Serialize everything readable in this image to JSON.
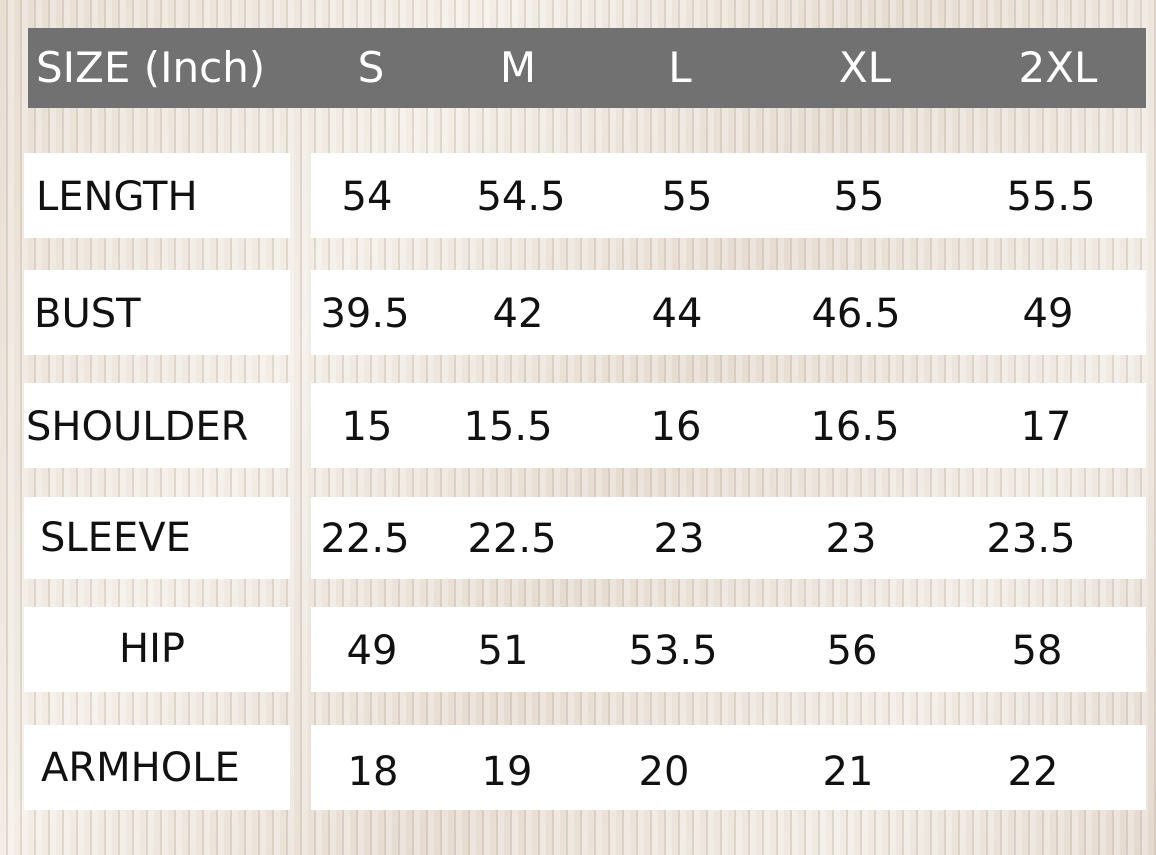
{
  "header": {
    "title": "SIZE (Inch)",
    "sizes": [
      "S",
      "M",
      "L",
      "XL",
      "2XL"
    ]
  },
  "rows": [
    {
      "label": "LENGTH",
      "values": [
        "54",
        "54.5",
        "55",
        "55",
        "55.5"
      ]
    },
    {
      "label": "BUST",
      "values": [
        "39.5",
        "42",
        "44",
        "46.5",
        "49"
      ]
    },
    {
      "label": "SHOULDER",
      "values": [
        "15",
        "15.5",
        "16",
        "16.5",
        "17"
      ]
    },
    {
      "label": "SLEEVE",
      "values": [
        "22.5",
        "22.5",
        "23",
        "23",
        "23.5"
      ]
    },
    {
      "label": "HIP",
      "values": [
        "49",
        "51",
        "53.5",
        "56",
        "58"
      ]
    },
    {
      "label": "ARMHOLE",
      "values": [
        "18",
        "19",
        "20",
        "21",
        "22"
      ]
    }
  ]
}
